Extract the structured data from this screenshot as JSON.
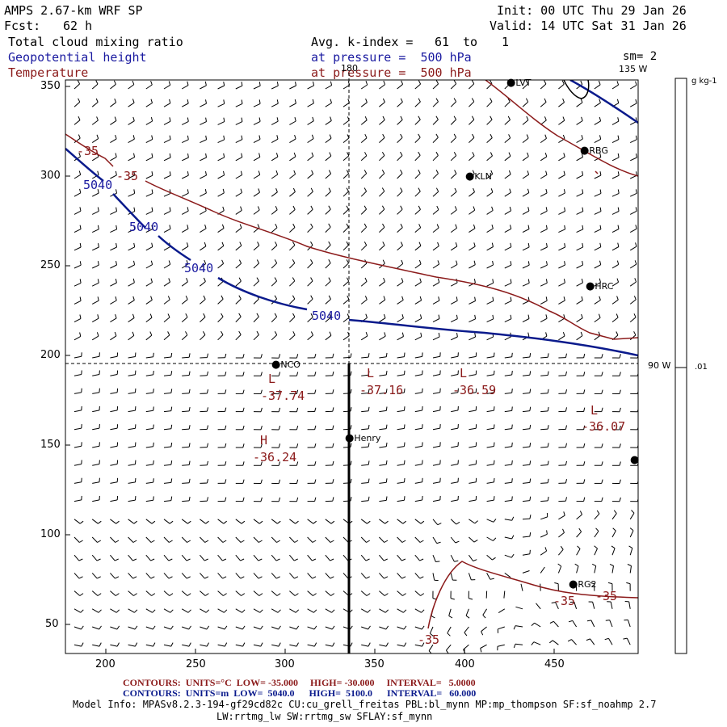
{
  "header": {
    "title_left": "AMPS 2.67-km WRF SP",
    "init": "Init: 00 UTC Thu 29 Jan 26",
    "fcst_label": "Fcst:",
    "fcst_value": "62 h",
    "valid": "Valid: 14 UTC Sat 31 Jan 26",
    "field1": "Total cloud mixing ratio",
    "field2": "Geopotential height",
    "field3": "Temperature",
    "avg_label": "Avg. k-index =",
    "avg_from": "61",
    "avg_to_word": "to",
    "avg_to": "1",
    "pressure1": "at pressure =  500 hPa",
    "pressure2": "at pressure =  500 hPa",
    "sm": "sm= 2",
    "lon_top": "180",
    "lon_right_top": "135 W",
    "lon_right_mid": "90 W"
  },
  "colorbar": {
    "unit": "g kg-1",
    "tick": ".01"
  },
  "axes": {
    "x_ticks": [
      "200",
      "250",
      "300",
      "350",
      "400",
      "450"
    ],
    "y_ticks": [
      "350",
      "300",
      "250",
      "200",
      "150",
      "100",
      "50"
    ]
  },
  "stations": [
    {
      "name": "LVT"
    },
    {
      "name": "RBG"
    },
    {
      "name": "KLN"
    },
    {
      "name": "HRC"
    },
    {
      "name": "NCO"
    },
    {
      "name": "Henry"
    },
    {
      "name": "RG2"
    },
    {
      "name": ""
    }
  ],
  "contour_labels": {
    "height": [
      "5040",
      "5040",
      "5040",
      "5040"
    ],
    "temp": [
      "-35",
      "-35",
      "-35",
      "-35",
      "-35"
    ]
  },
  "extrema": [
    {
      "letter": "L",
      "value": "-37.74"
    },
    {
      "letter": "L",
      "value": "-37.16"
    },
    {
      "letter": "L",
      "value": "-36.59"
    },
    {
      "letter": "L",
      "value": "-36.07"
    },
    {
      "letter": "H",
      "value": "-36.24"
    }
  ],
  "footer": {
    "contours1": "CONTOURS:  UNITS=°C  LOW= -35.000     HIGH= -30.000     INTERVAL=   5.0000",
    "contours2": "CONTOURS:  UNITS=m  LOW=  5040.0      HIGH=  5100.0      INTERVAL=   60.000",
    "model_info": "Model Info: MPASv8.2.3-194-gf29cd82c CU:cu_grell_freitas PBL:bl_mynn MP:mp_thompson SF:sf_noahmp 2.7",
    "model_info2": "LW:rrtmg_lw SW:rrtmg_sw SFLAY:sf_mynn"
  },
  "colors": {
    "height_contour": "#0a1a8c",
    "temp_contour": "#8b1a1a",
    "barbs": "#000000",
    "text_blue": "#1a1aa0",
    "text_red": "#8b1a1a"
  }
}
